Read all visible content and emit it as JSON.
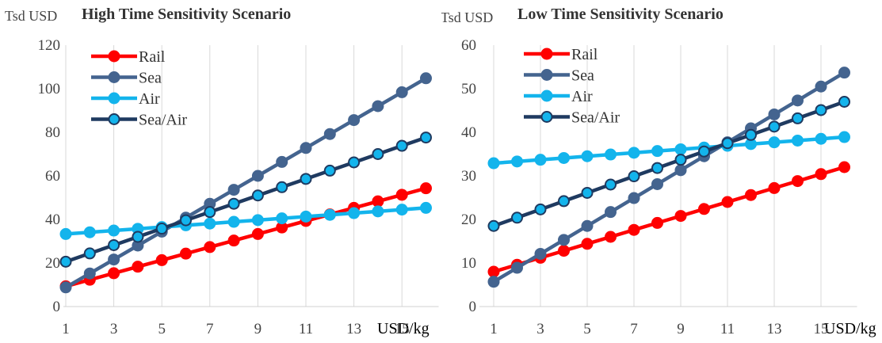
{
  "chart_data": [
    {
      "type": "line",
      "title": "High Time Sensitivity Scenario",
      "ylabel": "Tsd USD",
      "xlabel": "USD/kg",
      "ylim": [
        0,
        120
      ],
      "yticks": [
        0,
        20,
        40,
        60,
        80,
        100,
        120
      ],
      "xlim": [
        1,
        16
      ],
      "xticks": [
        1,
        3,
        5,
        7,
        9,
        11,
        13,
        15
      ],
      "legend_position": "top-left",
      "grid": "vertical",
      "x": [
        1,
        2,
        3,
        4,
        5,
        6,
        7,
        8,
        9,
        10,
        11,
        12,
        13,
        14,
        15,
        16
      ],
      "series": [
        {
          "name": "Rail",
          "color": "#ff0000",
          "marker_fill": "#ff0000",
          "values": [
            9.3,
            12.3,
            15.3,
            18.3,
            21.3,
            24.3,
            27.3,
            30.3,
            33.3,
            36.3,
            39.3,
            42.3,
            45.3,
            48.3,
            51.3,
            54.3
          ]
        },
        {
          "name": "Sea",
          "color": "#44648f",
          "marker_fill": "#44648f",
          "values": [
            8.8,
            15.2,
            21.6,
            28.0,
            34.4,
            40.8,
            47.2,
            53.6,
            60.0,
            66.4,
            72.8,
            79.2,
            85.6,
            92.0,
            98.4,
            104.8
          ]
        },
        {
          "name": "Air",
          "color": "#13b4ec",
          "marker_fill": "#13b4ec",
          "values": [
            33.3,
            34.1,
            34.9,
            35.7,
            36.5,
            37.3,
            38.1,
            38.9,
            39.7,
            40.5,
            41.3,
            42.1,
            42.9,
            43.7,
            44.5,
            45.3
          ]
        },
        {
          "name": "Sea/Air",
          "color": "#1f3a60",
          "marker_fill": "#13b4ec",
          "values": [
            20.6,
            24.4,
            28.2,
            32.0,
            35.8,
            39.6,
            43.4,
            47.2,
            51.0,
            54.8,
            58.6,
            62.4,
            66.2,
            70.0,
            73.8,
            77.6
          ]
        }
      ]
    },
    {
      "type": "line",
      "title": "Low Time Sensitivity Scenario",
      "ylabel": "Tsd USD",
      "xlabel": "USD/kg",
      "ylim": [
        0,
        60
      ],
      "yticks": [
        0,
        10,
        20,
        30,
        40,
        50,
        60
      ],
      "xlim": [
        1,
        16
      ],
      "xticks": [
        1,
        3,
        5,
        7,
        9,
        11,
        13,
        15
      ],
      "legend_position": "top-left",
      "grid": "vertical",
      "x": [
        1,
        2,
        3,
        4,
        5,
        6,
        7,
        8,
        9,
        10,
        11,
        12,
        13,
        14,
        15,
        16
      ],
      "series": [
        {
          "name": "Rail",
          "color": "#ff0000",
          "marker_fill": "#ff0000",
          "values": [
            8.0,
            9.6,
            11.2,
            12.8,
            14.4,
            16.0,
            17.6,
            19.2,
            20.8,
            22.4,
            24.0,
            25.6,
            27.2,
            28.8,
            30.4,
            32.0
          ]
        },
        {
          "name": "Sea",
          "color": "#44648f",
          "marker_fill": "#44648f",
          "values": [
            5.7,
            8.9,
            12.1,
            15.3,
            18.5,
            21.7,
            24.9,
            28.1,
            31.3,
            34.5,
            37.7,
            40.9,
            44.1,
            47.3,
            50.5,
            53.7
          ]
        },
        {
          "name": "Air",
          "color": "#13b4ec",
          "marker_fill": "#13b4ec",
          "values": [
            32.9,
            33.3,
            33.7,
            34.1,
            34.5,
            34.9,
            35.3,
            35.7,
            36.1,
            36.5,
            36.9,
            37.3,
            37.7,
            38.1,
            38.5,
            38.9
          ]
        },
        {
          "name": "Sea/Air",
          "color": "#1f3a60",
          "marker_fill": "#13b4ec",
          "values": [
            18.5,
            20.4,
            22.3,
            24.2,
            26.1,
            28.0,
            29.9,
            31.8,
            33.7,
            35.6,
            37.5,
            39.4,
            41.3,
            43.2,
            45.1,
            47.0
          ]
        }
      ]
    }
  ]
}
